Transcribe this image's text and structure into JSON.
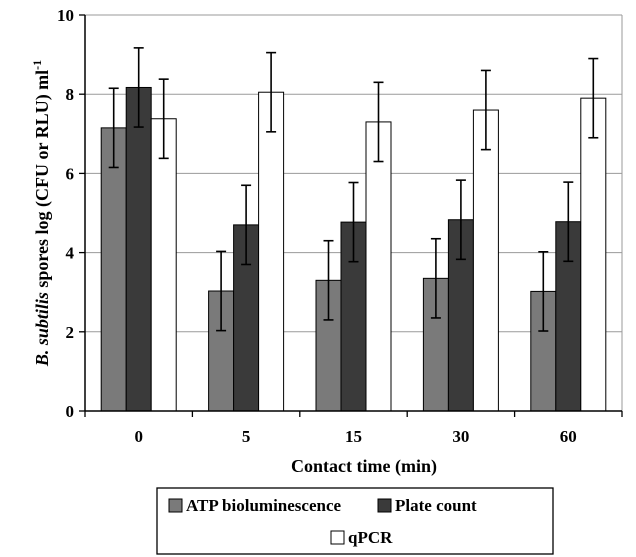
{
  "chart_data": {
    "type": "bar",
    "categories": [
      "0",
      "5",
      "15",
      "30",
      "60"
    ],
    "series": [
      {
        "name": "ATP bioluminescence",
        "color": "#7a7a7a",
        "values": [
          7.15,
          3.03,
          3.3,
          3.35,
          3.02
        ],
        "errors": [
          1.0,
          1.0,
          1.0,
          1.0,
          1.0
        ]
      },
      {
        "name": "Plate count",
        "color": "#3a3a3a",
        "values": [
          8.17,
          4.7,
          4.77,
          4.83,
          4.78
        ],
        "errors": [
          1.0,
          1.0,
          1.0,
          1.0,
          1.0
        ]
      },
      {
        "name": "qPCR",
        "color": "#ffffff",
        "values": [
          7.38,
          8.05,
          7.3,
          7.6,
          7.9
        ],
        "errors": [
          1.0,
          1.0,
          1.0,
          1.0,
          1.0
        ]
      }
    ],
    "xlabel": "Contact time (min)",
    "ylabel_italic": "B. subtilis",
    "ylabel_rest": " spores log (CFU or RLU) ml",
    "ylabel_sup": "-1",
    "ylim": [
      0,
      10
    ],
    "yticks": [
      "0",
      "2",
      "4",
      "6",
      "8",
      "10"
    ],
    "grid": true,
    "legend_position": "bottom"
  }
}
